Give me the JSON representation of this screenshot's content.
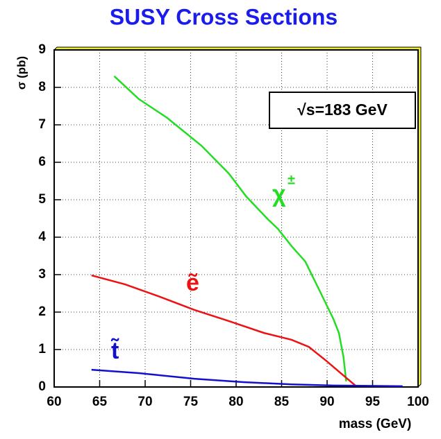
{
  "chart_data": {
    "type": "line",
    "title": "SUSY Cross Sections",
    "x_label": "mass (GeV)",
    "y_label": "σ (pb)",
    "annotation": "√s=183 GeV",
    "xlim": [
      60,
      100
    ],
    "xticks": [
      60,
      65,
      70,
      75,
      80,
      85,
      90,
      95,
      100
    ],
    "ylim": [
      0,
      9
    ],
    "yticks": [
      0,
      1,
      2,
      3,
      4,
      5,
      6,
      7,
      8,
      9
    ],
    "grid": true,
    "series": [
      {
        "name": "χ",
        "superscript": "±",
        "color": "#22dd22",
        "x": [
          66.6,
          69.3,
          72.4,
          76.2,
          79.2,
          81.1,
          83.4,
          84.6,
          86.1,
          87.6,
          89.2,
          90.7,
          91.3,
          91.8,
          92.1
        ],
        "values": [
          8.3,
          7.69,
          7.19,
          6.44,
          5.7,
          5.09,
          4.5,
          4.22,
          3.76,
          3.35,
          2.56,
          1.81,
          1.44,
          0.8,
          0.15
        ]
      },
      {
        "name": "ẽ",
        "color": "#ee1111",
        "x": [
          64.1,
          67.8,
          71.6,
          75.4,
          79.2,
          83.1,
          86.1,
          88.0,
          89.9,
          91.5,
          93.1
        ],
        "values": [
          2.98,
          2.74,
          2.41,
          2.06,
          1.76,
          1.44,
          1.26,
          1.07,
          0.7,
          0.37,
          0.04
        ]
      },
      {
        "name": "t̃",
        "color": "#1111cc",
        "x": [
          64.1,
          69.3,
          75.4,
          80.8,
          86.1,
          90.7,
          98.3
        ],
        "values": [
          0.46,
          0.37,
          0.22,
          0.13,
          0.07,
          0.04,
          0.02
        ]
      }
    ]
  }
}
